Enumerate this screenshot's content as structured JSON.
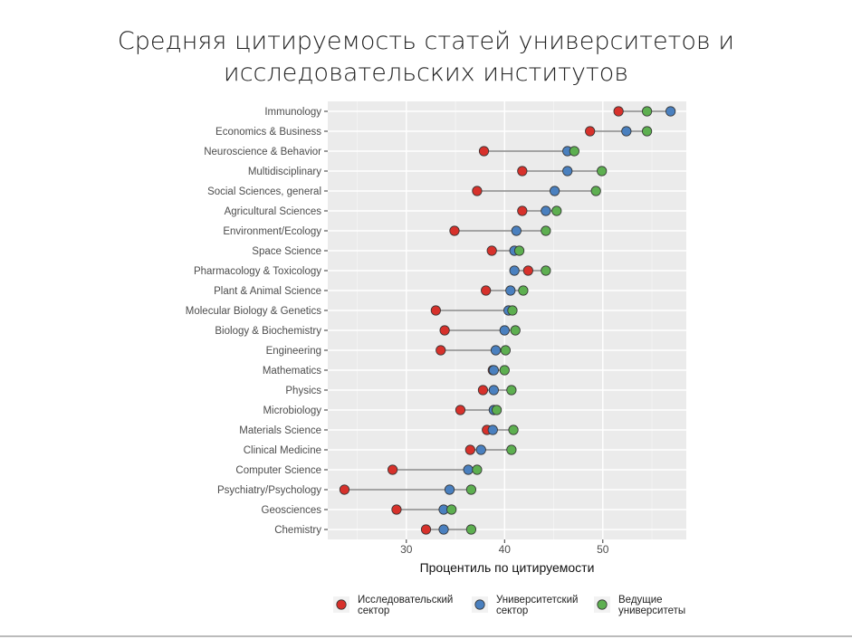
{
  "title_lines": [
    "Средняя цитируемость статей университетов и",
    "исследовательских институтов"
  ],
  "chart_data": {
    "type": "dumbbell",
    "title": "Средняя цитируемость статей университетов и исследовательских институтов",
    "xlabel": "Процентиль по цитируемости",
    "ylabel": "",
    "xlim": [
      22.0,
      58.5
    ],
    "xticks": [
      30,
      40,
      50
    ],
    "xtick_labels": [
      "30",
      "40",
      "50"
    ],
    "grid": true,
    "legend_position": "bottom",
    "categories": [
      "Immunology",
      "Economics & Business",
      "Neuroscience & Behavior",
      "Multidisciplinary",
      "Social Sciences, general",
      "Agricultural Sciences",
      "Environment/Ecology",
      "Space Science",
      "Pharmacology & Toxicology",
      "Plant & Animal Science",
      "Molecular Biology & Genetics",
      "Biology & Biochemistry",
      "Engineering",
      "Mathematics",
      "Physics",
      "Microbiology",
      "Materials Science",
      "Clinical Medicine",
      "Computer Science",
      "Psychiatry/Psychology",
      "Geosciences",
      "Chemistry"
    ],
    "series": [
      {
        "name": "Исследовательский сектор",
        "legend_lines": [
          "Исследовательский",
          "сектор"
        ],
        "color": "#d7312b",
        "values": [
          51.6,
          48.7,
          37.9,
          41.8,
          37.2,
          41.8,
          34.9,
          38.7,
          42.4,
          38.1,
          33.0,
          33.9,
          33.5,
          38.8,
          37.8,
          35.5,
          38.2,
          36.5,
          28.6,
          23.7,
          29.0,
          32.0
        ]
      },
      {
        "name": "Университетский сектор",
        "legend_lines": [
          "Университетский",
          "сектор"
        ],
        "color": "#4a80bf",
        "values": [
          56.9,
          52.4,
          46.4,
          46.4,
          45.1,
          44.2,
          41.2,
          41.0,
          41.0,
          40.6,
          40.4,
          40.0,
          39.1,
          38.9,
          38.9,
          38.9,
          38.8,
          37.6,
          36.3,
          34.4,
          33.8,
          33.8
        ]
      },
      {
        "name": "Ведущие университеты",
        "legend_lines": [
          "Ведущие",
          "университеты"
        ],
        "color": "#5daf50",
        "values": [
          54.5,
          54.5,
          47.1,
          49.9,
          49.3,
          45.3,
          44.2,
          41.5,
          44.2,
          41.9,
          40.8,
          41.1,
          40.1,
          40.0,
          40.7,
          39.2,
          40.9,
          40.7,
          37.2,
          36.6,
          34.6,
          36.6
        ]
      }
    ]
  }
}
